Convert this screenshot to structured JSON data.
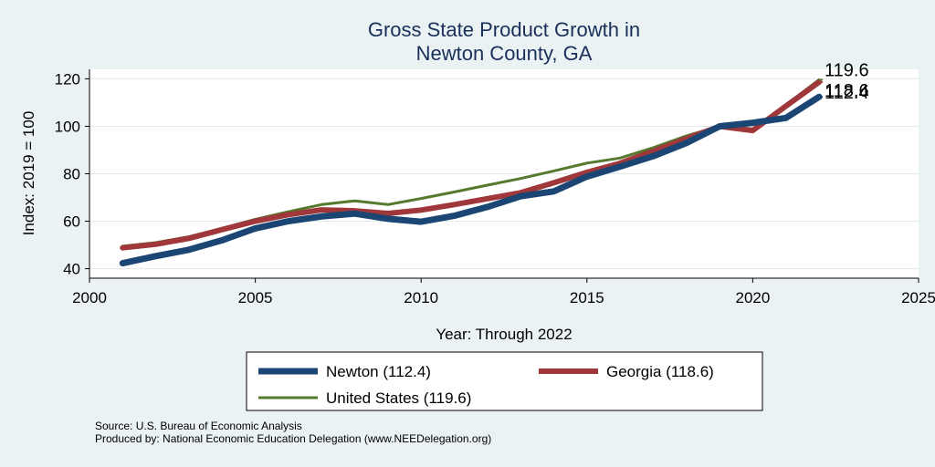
{
  "chart_data": {
    "type": "line",
    "title": [
      "Gross State Product Growth in",
      "Newton County, GA"
    ],
    "xlabel": "Year: Through 2022",
    "ylabel": "Index: 2019 = 100",
    "xlim": [
      2000,
      2025
    ],
    "ylim": [
      36,
      124
    ],
    "xticks": [
      2000,
      2005,
      2010,
      2015,
      2020,
      2025
    ],
    "yticks": [
      40,
      60,
      80,
      100,
      120
    ],
    "grid": true,
    "legend_position": "bottom",
    "x": [
      2001,
      2002,
      2003,
      2004,
      2005,
      2006,
      2007,
      2008,
      2009,
      2010,
      2011,
      2012,
      2013,
      2014,
      2015,
      2016,
      2017,
      2018,
      2019,
      2020,
      2021,
      2022
    ],
    "series": [
      {
        "name": "United States",
        "legend_label": "United States (119.6)",
        "color": "#557a2e",
        "width": 3,
        "end_label": "119.6",
        "values": [
          49.5,
          51.0,
          53.5,
          57.0,
          60.8,
          64.0,
          67.0,
          68.6,
          67.0,
          69.6,
          72.3,
          75.2,
          78.0,
          81.2,
          84.5,
          86.6,
          91.0,
          96.0,
          100.0,
          98.9,
          109.0,
          119.6
        ]
      },
      {
        "name": "Georgia",
        "legend_label": "Georgia (118.6)",
        "color": "#a0373a",
        "width": 6,
        "end_label": "118.6",
        "values": [
          48.8,
          50.3,
          52.8,
          56.5,
          60.0,
          62.8,
          64.8,
          64.4,
          63.3,
          64.7,
          67.0,
          69.5,
          72.0,
          76.2,
          80.6,
          84.4,
          89.5,
          94.8,
          100.0,
          98.2,
          108.5,
          118.6
        ]
      },
      {
        "name": "Newton",
        "legend_label": "Newton  (112.4)",
        "color": "#1b4674",
        "width": 7,
        "end_label": "112.4",
        "values": [
          42.3,
          45.3,
          48.0,
          52.0,
          57.0,
          60.0,
          62.0,
          63.2,
          61.0,
          59.8,
          62.3,
          66.0,
          70.5,
          72.6,
          78.8,
          83.0,
          87.4,
          93.0,
          100.0,
          101.5,
          103.5,
          112.4
        ]
      }
    ]
  },
  "source_note": "Source: U.S. Bureau of Economic Analysis",
  "produced_note": "Produced by: National Economic Education Delegation (www.NEEDelegation.org)"
}
